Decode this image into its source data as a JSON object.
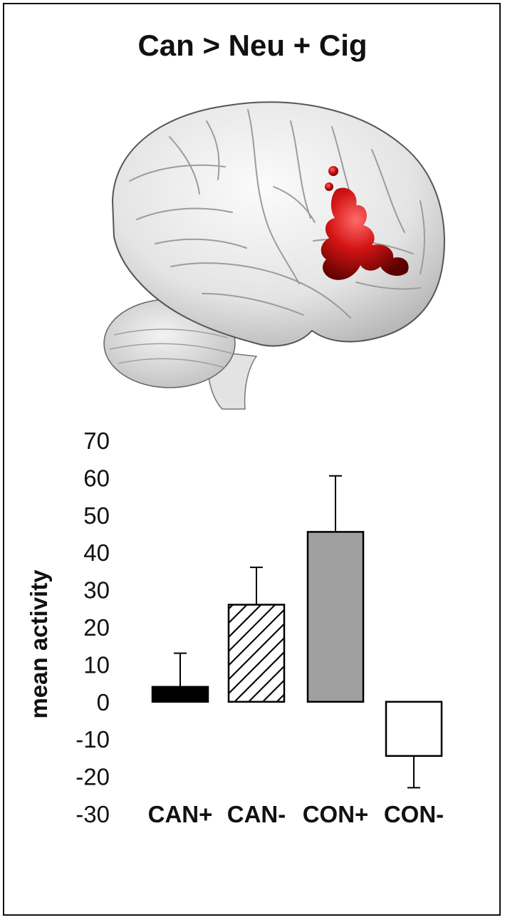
{
  "figure": {
    "title": "Can > Neu + Cig"
  },
  "chart_data": {
    "type": "bar",
    "title": "",
    "xlabel": "",
    "ylabel": "mean activity",
    "ylim": [
      -30,
      70
    ],
    "yticks": [
      70,
      60,
      50,
      40,
      30,
      20,
      10,
      0,
      -10,
      -20,
      -30
    ],
    "categories": [
      "CAN+",
      "CAN-",
      "CON+",
      "CON-"
    ],
    "values": [
      4,
      26,
      45.5,
      -14.5
    ],
    "errors": [
      9,
      10,
      15,
      8.5
    ],
    "fills": [
      "#000000",
      "hatched",
      "#a0a0a0",
      "#ffffff"
    ],
    "grid": false,
    "legend": "none"
  },
  "colors": {
    "activation": "#cc1111",
    "brain": "#e6e6e6",
    "outline": "#111111"
  }
}
